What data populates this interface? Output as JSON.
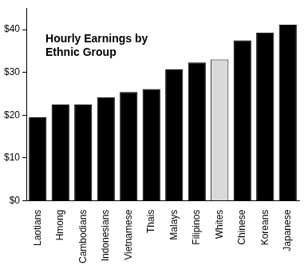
{
  "chart_data": {
    "type": "bar",
    "title": [
      "Hourly Earnings by",
      "Ethnic Group"
    ],
    "categories": [
      "Laotians",
      "Hmong",
      "Cambodians",
      "Indonesians",
      "Vietnamese",
      "Thais",
      "Malays",
      "Filipinos",
      "Whites",
      "Chinese",
      "Koreans",
      "Japanese"
    ],
    "values": [
      19.5,
      22.5,
      22.5,
      24.2,
      25.4,
      26.1,
      30.7,
      32.3,
      33.0,
      37.5,
      39.3,
      41.1
    ],
    "colors": [
      "#000000",
      "#000000",
      "#000000",
      "#000000",
      "#000000",
      "#000000",
      "#000000",
      "#000000",
      "#d9d9d9",
      "#000000",
      "#000000",
      "#000000"
    ],
    "ylim": [
      0,
      45
    ],
    "yticks": [
      {
        "value": 0,
        "label": "$0"
      },
      {
        "value": 10,
        "label": "$10"
      },
      {
        "value": 20,
        "label": "$20"
      },
      {
        "value": 30,
        "label": "$30"
      },
      {
        "value": 40,
        "label": "$40"
      }
    ],
    "grid": false
  }
}
